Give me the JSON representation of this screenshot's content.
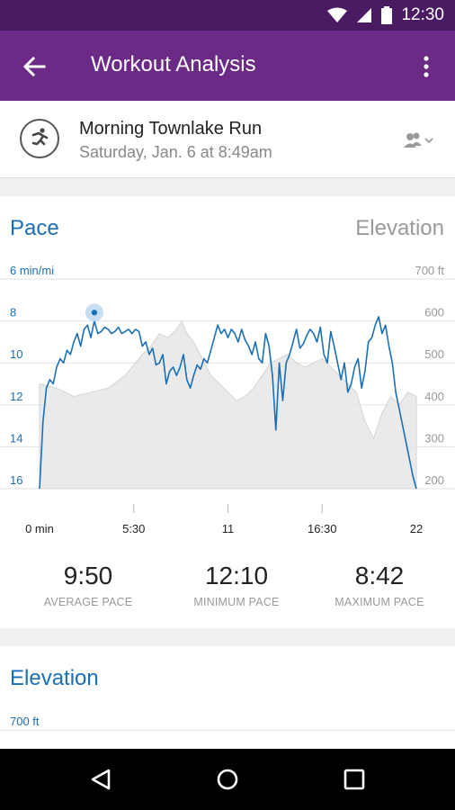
{
  "status_bar": {
    "time": "12:30"
  },
  "app_bar": {
    "title": "Workout Analysis"
  },
  "workout": {
    "title": "Morning Townlake Run",
    "date": "Saturday, Jan. 6 at 8:49am"
  },
  "tabs": {
    "pace": "Pace",
    "elevation": "Elevation"
  },
  "chart_data": {
    "type": "line",
    "x_unit": "min",
    "xlim": [
      0,
      22
    ],
    "x_tick_labels": [
      "0 min",
      "5:30",
      "11",
      "16:30",
      "22"
    ],
    "x_ticks": [
      0,
      5.5,
      11,
      16.5,
      22
    ],
    "left_axis": {
      "ticks": [
        6,
        8,
        10,
        12,
        14,
        16
      ],
      "tick_labels": [
        "6 min/mi",
        "8",
        "10",
        "12",
        "14",
        "16"
      ],
      "range": [
        6,
        16
      ],
      "inverted": true
    },
    "right_axis": {
      "ticks": [
        700,
        600,
        500,
        400,
        300,
        200
      ],
      "tick_labels": [
        "700 ft",
        "600",
        "500",
        "400",
        "300",
        "200"
      ],
      "range": [
        200,
        700
      ]
    },
    "series": [
      {
        "axis": "left",
        "color": "#1a6fb5",
        "x": [
          0,
          0.2,
          0.4,
          0.6,
          0.8,
          1.0,
          1.2,
          1.4,
          1.6,
          1.8,
          2.0,
          2.2,
          2.4,
          2.6,
          2.8,
          3.0,
          3.2,
          3.4,
          3.6,
          3.8,
          4.0,
          4.2,
          4.4,
          4.6,
          4.8,
          5.0,
          5.2,
          5.4,
          5.6,
          5.8,
          6.0,
          6.2,
          6.4,
          6.6,
          6.8,
          7.0,
          7.2,
          7.4,
          7.6,
          7.8,
          8.0,
          8.2,
          8.4,
          8.6,
          8.8,
          9.0,
          9.2,
          9.4,
          9.6,
          9.8,
          10.0,
          10.2,
          10.4,
          10.6,
          10.8,
          11.0,
          11.2,
          11.4,
          11.6,
          11.8,
          12.0,
          12.2,
          12.4,
          12.6,
          12.8,
          13.0,
          13.2,
          13.4,
          13.6,
          13.8,
          14.0,
          14.2,
          14.4,
          14.6,
          14.8,
          15.0,
          15.2,
          15.4,
          15.6,
          15.8,
          16.0,
          16.2,
          16.4,
          16.6,
          16.8,
          17.0,
          17.2,
          17.4,
          17.6,
          17.8,
          18.0,
          18.2,
          18.4,
          18.6,
          18.8,
          19.0,
          19.2,
          19.4,
          19.6,
          19.8,
          20.0,
          20.2,
          20.4,
          20.6,
          20.8,
          21.0,
          21.2,
          21.4,
          21.6,
          21.8,
          22.0
        ],
        "values": [
          16,
          12.8,
          11.2,
          10.8,
          11.0,
          10.2,
          9.8,
          10.0,
          9.4,
          9.6,
          9.0,
          8.6,
          9.2,
          8.4,
          8.2,
          8.8,
          8.0,
          8.6,
          8.5,
          8.3,
          8.4,
          8.6,
          8.5,
          8.3,
          8.6,
          8.5,
          8.4,
          8.6,
          8.4,
          8.5,
          9.2,
          9.0,
          9.6,
          9.3,
          10.1,
          10.0,
          9.6,
          11.0,
          10.4,
          10.2,
          10.6,
          10.2,
          9.6,
          10.8,
          11.2,
          10.6,
          10.1,
          10.3,
          9.8,
          10.0,
          9.4,
          8.8,
          8.2,
          8.6,
          8.4,
          8.8,
          8.4,
          8.6,
          9.0,
          8.4,
          8.9,
          9.2,
          9.6,
          9.0,
          9.8,
          10.0,
          8.6,
          9.2,
          10.6,
          13.2,
          10.0,
          11.8,
          10.0,
          9.6,
          9.0,
          8.4,
          9.3,
          9.1,
          8.7,
          8.4,
          8.6,
          9.0,
          8.3,
          9.6,
          10.0,
          8.5,
          9.2,
          10.0,
          10.8,
          10.0,
          11.4,
          11.0,
          10.2,
          9.8,
          11.2,
          10.4,
          9.0,
          8.8,
          8.2,
          7.8,
          8.6,
          8.2,
          9.2,
          10.0,
          11.4,
          12.2,
          13.0,
          13.8,
          14.6,
          15.4,
          16.0
        ]
      },
      {
        "axis": "right",
        "color": "#e6e6e8",
        "x": [
          0,
          1.0,
          2.0,
          3.0,
          4.0,
          5.0,
          6.0,
          6.5,
          7.0,
          7.5,
          8.0,
          8.3,
          8.6,
          9.0,
          9.5,
          10.0,
          10.5,
          11.0,
          11.5,
          12.0,
          12.5,
          13.0,
          13.5,
          14.0,
          14.5,
          15.0,
          15.5,
          16.0,
          16.5,
          17.0,
          17.5,
          18.0,
          18.5,
          19.0,
          19.5,
          20.0,
          20.5,
          21.0,
          21.5,
          22.0
        ],
        "values": [
          450,
          440,
          420,
          430,
          440,
          470,
          520,
          540,
          570,
          560,
          580,
          600,
          570,
          550,
          510,
          470,
          450,
          430,
          410,
          420,
          440,
          470,
          500,
          510,
          520,
          500,
          490,
          500,
          510,
          490,
          470,
          450,
          430,
          360,
          320,
          380,
          420,
          400,
          430,
          420
        ]
      }
    ],
    "highlight_point": {
      "x": 3.2,
      "y": 7.6
    },
    "grid": true
  },
  "stats": [
    {
      "value": "9:50",
      "label": "AVERAGE PACE"
    },
    {
      "value": "12:10",
      "label": "MINIMUM PACE"
    },
    {
      "value": "8:42",
      "label": "MAXIMUM PACE"
    }
  ],
  "elevation_section": {
    "title": "Elevation",
    "axis_label": "700 ft"
  }
}
